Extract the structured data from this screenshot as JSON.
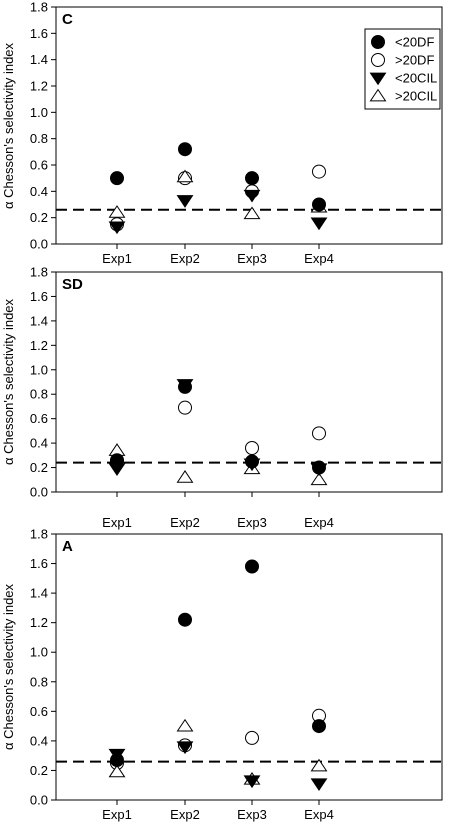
{
  "chart_data": [
    {
      "type": "scatter",
      "panel_label": "C",
      "categories": [
        "Exp1",
        "Exp2",
        "Exp3",
        "Exp4"
      ],
      "ylabel": "α Chesson's selectivity index",
      "ylim": [
        0,
        1.8
      ],
      "yticks": [
        "0.0",
        "0.2",
        "0.4",
        "0.6",
        "0.8",
        "1.0",
        "1.2",
        "1.4",
        "1.6",
        "1.8"
      ],
      "reference_line": 0.26,
      "legend": true,
      "legend_position": "top-right",
      "series": [
        {
          "name": "<20DF",
          "marker": "filled-circle",
          "values": [
            0.5,
            0.72,
            0.5,
            0.3
          ]
        },
        {
          "name": ">20DF",
          "marker": "open-circle",
          "values": [
            0.15,
            0.5,
            0.4,
            0.55
          ]
        },
        {
          "name": "<20CIL",
          "marker": "filled-triangle-down",
          "values": [
            0.13,
            0.33,
            0.37,
            0.16
          ]
        },
        {
          "name": ">20CIL",
          "marker": "open-triangle-up",
          "values": [
            0.24,
            0.51,
            0.23,
            0.28
          ]
        }
      ]
    },
    {
      "type": "scatter",
      "panel_label": "SD",
      "categories": [
        "Exp1",
        "Exp2",
        "Exp3",
        "Exp4"
      ],
      "ylabel": "α Chesson's selectivity index",
      "ylim": [
        0,
        1.8
      ],
      "yticks": [
        "0.0",
        "0.2",
        "0.4",
        "0.6",
        "0.8",
        "1.0",
        "1.2",
        "1.4",
        "1.6",
        "1.8"
      ],
      "reference_line": 0.24,
      "legend": false,
      "series": [
        {
          "name": "<20DF",
          "marker": "filled-circle",
          "values": [
            0.26,
            0.86,
            0.25,
            0.2
          ]
        },
        {
          "name": ">20DF",
          "marker": "open-circle",
          "values": [
            0.25,
            0.69,
            0.36,
            0.48
          ]
        },
        {
          "name": "<20CIL",
          "marker": "filled-triangle-down",
          "values": [
            0.19,
            0.88,
            0.23,
            0.19
          ]
        },
        {
          "name": ">20CIL",
          "marker": "open-triangle-up",
          "values": [
            0.34,
            0.12,
            0.19,
            0.1
          ]
        }
      ]
    },
    {
      "type": "scatter",
      "panel_label": "A",
      "categories": [
        "Exp1",
        "Exp2",
        "Exp3",
        "Exp4"
      ],
      "ylabel": "α Chesson's selectivity index",
      "ylim": [
        0,
        1.8
      ],
      "yticks": [
        "0.0",
        "0.2",
        "0.4",
        "0.6",
        "0.8",
        "1.0",
        "1.2",
        "1.4",
        "1.6",
        "1.8"
      ],
      "reference_line": 0.26,
      "legend": false,
      "series": [
        {
          "name": "<20DF",
          "marker": "filled-circle",
          "values": [
            0.27,
            1.22,
            1.58,
            0.5
          ]
        },
        {
          "name": ">20DF",
          "marker": "open-circle",
          "values": [
            0.25,
            0.37,
            0.42,
            0.57
          ]
        },
        {
          "name": "<20CIL",
          "marker": "filled-triangle-down",
          "values": [
            0.31,
            0.36,
            0.13,
            0.11
          ]
        },
        {
          "name": ">20CIL",
          "marker": "open-triangle-up",
          "values": [
            0.19,
            0.5,
            0.14,
            0.23
          ]
        }
      ]
    }
  ]
}
